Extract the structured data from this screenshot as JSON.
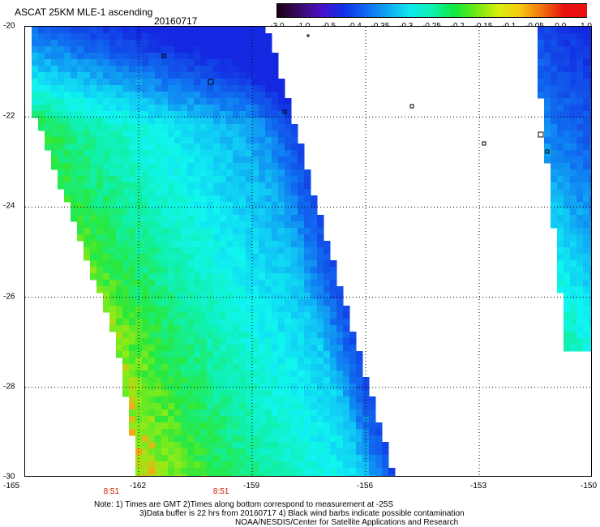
{
  "header": {
    "title": "ASCAT 25KM MLE-1 ascending",
    "date": "20160717"
  },
  "colorbar": {
    "labels": [
      "-3.0",
      "-1.0",
      "-0.5",
      "-0.4",
      "-0.35",
      "-0.3",
      "-0.25",
      "-0.2",
      "-0.15",
      "-0.1",
      "-0.05",
      "0.0",
      "1.0"
    ],
    "colors": [
      "#1a0010",
      "#3a0a6a",
      "#4a10c8",
      "#1030e8",
      "#1068f0",
      "#10a8f0",
      "#10e8f0",
      "#10f0b0",
      "#10e840",
      "#70e810",
      "#d8f010",
      "#f8c810",
      "#f07010",
      "#e81010"
    ]
  },
  "map": {
    "lat_labels": [
      "-20",
      "-22",
      "-24",
      "-26",
      "-28",
      "-30"
    ],
    "lon_labels": [
      "-165",
      "-162",
      "-159",
      "-156",
      "-153",
      "-150"
    ],
    "lat_range": [
      -30,
      -20
    ],
    "lon_range": [
      -165,
      -150
    ],
    "grid": "dotted",
    "swath_times": [
      "8:51",
      "8:51"
    ],
    "swath_time_lons": [
      -162.7,
      -159.8
    ]
  },
  "notes": {
    "line1": "Note: 1) Times are GMT 2)Times along bottom correspond to measurement at -25S",
    "line2": "3)Data buffer is 22 hrs from 20160717 4) Black wind barbs indicate possible contamination",
    "line3": "NOAA/NESDIS/Center for Satellite Applications and Research"
  }
}
